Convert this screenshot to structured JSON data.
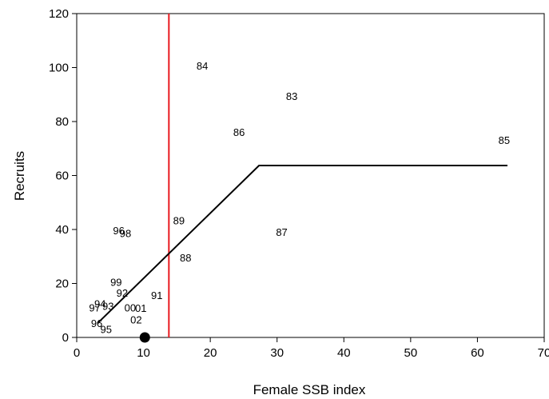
{
  "chart_data": {
    "type": "scatter",
    "xlabel": "Female SSB index",
    "ylabel": "Recruits",
    "xlim": [
      0,
      70
    ],
    "ylim": [
      0,
      120
    ],
    "xticks": [
      0,
      10,
      20,
      30,
      40,
      50,
      60,
      70
    ],
    "yticks": [
      0,
      20,
      40,
      60,
      80,
      100,
      120
    ],
    "grid": false,
    "points": [
      {
        "label": "84",
        "x": 18.8,
        "y": 100.6
      },
      {
        "label": "83",
        "x": 32.2,
        "y": 89.3
      },
      {
        "label": "86",
        "x": 24.3,
        "y": 76.0
      },
      {
        "label": "85",
        "x": 64.0,
        "y": 73.0
      },
      {
        "label": "89",
        "x": 15.3,
        "y": 43.3
      },
      {
        "label": "96",
        "x": 6.3,
        "y": 39.5
      },
      {
        "label": "98",
        "x": 7.3,
        "y": 38.5
      },
      {
        "label": "87",
        "x": 30.7,
        "y": 39.0
      },
      {
        "label": "88",
        "x": 16.3,
        "y": 29.5
      },
      {
        "label": "99",
        "x": 5.9,
        "y": 20.5
      },
      {
        "label": "92",
        "x": 6.8,
        "y": 16.5
      },
      {
        "label": "91",
        "x": 12.0,
        "y": 15.5
      },
      {
        "label": "94",
        "x": 3.5,
        "y": 12.5
      },
      {
        "label": "97",
        "x": 2.7,
        "y": 11.0
      },
      {
        "label": "93",
        "x": 4.7,
        "y": 11.5
      },
      {
        "label": "00",
        "x": 8.0,
        "y": 11.0
      },
      {
        "label": "01",
        "x": 9.6,
        "y": 10.8
      },
      {
        "label": "02",
        "x": 8.9,
        "y": 6.5
      },
      {
        "label": "96",
        "x": 3.0,
        "y": 5.2
      },
      {
        "label": "95",
        "x": 4.4,
        "y": 3.0
      }
    ],
    "highlight_point": {
      "x": 10.2,
      "y": 0
    },
    "segmented_regression": [
      {
        "x": 3.1,
        "y": 5.2
      },
      {
        "x": 27.3,
        "y": 63.7
      },
      {
        "x": 64.5,
        "y": 63.7
      }
    ],
    "vertical_reference_line": {
      "x": 13.8,
      "color": "#e8191e"
    }
  }
}
